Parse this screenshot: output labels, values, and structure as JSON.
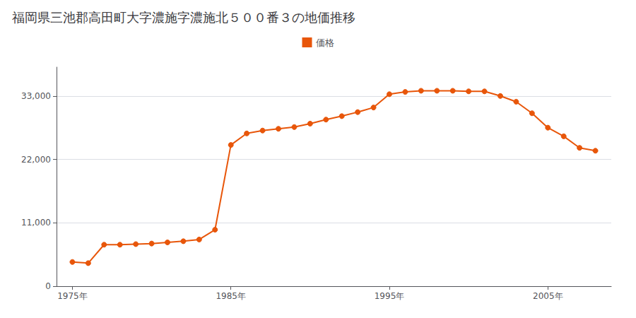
{
  "chart_data": {
    "type": "line",
    "title": "福岡県三池郡高田町大字濃施字濃施北５００番３の地価推移",
    "x": [
      1975,
      1976,
      1977,
      1978,
      1979,
      1980,
      1981,
      1982,
      1983,
      1984,
      1985,
      1986,
      1987,
      1988,
      1989,
      1990,
      1991,
      1992,
      1993,
      1994,
      1995,
      1996,
      1997,
      1998,
      1999,
      2000,
      2001,
      2002,
      2003,
      2004,
      2005,
      2006,
      2007,
      2008
    ],
    "series": [
      {
        "name": "価格",
        "color": "#e8560a",
        "marker": "circle",
        "values": [
          4200,
          4000,
          7200,
          7200,
          7300,
          7400,
          7600,
          7800,
          8100,
          9800,
          24500,
          26500,
          27000,
          27300,
          27600,
          28200,
          28900,
          29500,
          30200,
          31000,
          33300,
          33700,
          33900,
          33900,
          33900,
          33800,
          33800,
          33000,
          32000,
          30000,
          27500,
          26000,
          24000,
          23500
        ]
      }
    ],
    "xlim": [
      1974,
      2009
    ],
    "xticks": [
      {
        "value": 1975,
        "label": "1975年"
      },
      {
        "value": 1985,
        "label": "1985年"
      },
      {
        "value": 1995,
        "label": "1995年"
      },
      {
        "value": 2005,
        "label": "2005年"
      }
    ],
    "ylim": [
      0,
      38000
    ],
    "yticks": [
      0,
      {
        "value": 11000,
        "label": "11,000"
      },
      {
        "value": 22000,
        "label": "22,000"
      },
      {
        "value": 33000,
        "label": "33,000"
      }
    ],
    "grid": true,
    "legend": "top"
  }
}
